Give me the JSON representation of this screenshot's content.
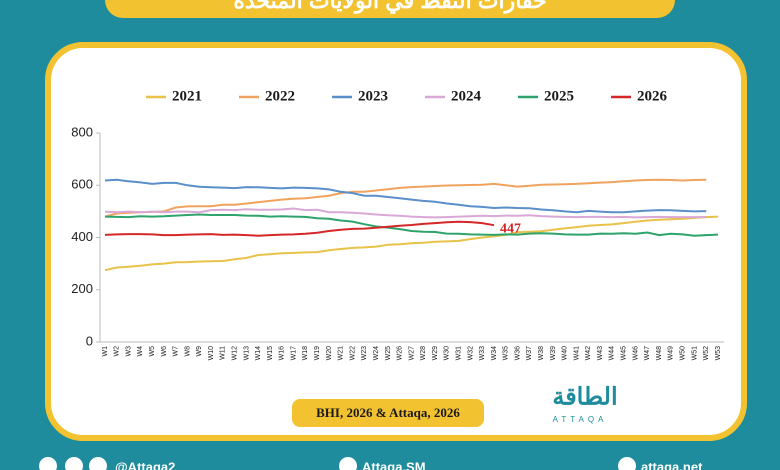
{
  "banner": {
    "title": "حفارات النفط في الولايات المتحدة"
  },
  "source": "BHI, 2026 & Attaqa, 2026",
  "logo": {
    "arabic": "الطاقة",
    "latin": "ATTAQA"
  },
  "social": [
    "@Attaqa2",
    "Attaqa.SM",
    "attaqa.net"
  ],
  "chart_data": {
    "type": "line",
    "categories": [
      "W1",
      "W2",
      "W3",
      "W4",
      "W5",
      "W6",
      "W7",
      "W8",
      "W9",
      "W10",
      "W11",
      "W12",
      "W13",
      "W14",
      "W15",
      "W16",
      "W17",
      "W18",
      "W19",
      "W20",
      "W21",
      "W22",
      "W23",
      "W24",
      "W25",
      "W26",
      "W27",
      "W28",
      "W29",
      "W30",
      "W31",
      "W32",
      "W33",
      "W34",
      "W35",
      "W36",
      "W37",
      "W38",
      "W39",
      "W40",
      "W41",
      "W42",
      "W43",
      "W44",
      "W45",
      "W46",
      "W47",
      "W48",
      "W49",
      "W50",
      "W51",
      "W52",
      "W53"
    ],
    "ylim": [
      0,
      800
    ],
    "yticks": [
      0,
      200,
      400,
      600,
      800
    ],
    "grid": false,
    "legend": "top",
    "series": [
      {
        "name": "2021",
        "color": "#e8c24a",
        "values": [
          275,
          285,
          288,
          292,
          297,
          300,
          305,
          306,
          308,
          309,
          310,
          317,
          322,
          333,
          336,
          340,
          341,
          343,
          344,
          351,
          356,
          360,
          362,
          365,
          372,
          374,
          378,
          380,
          384,
          385,
          387,
          394,
          400,
          405,
          410,
          420,
          422,
          424,
          430,
          435,
          440,
          445,
          448,
          450,
          455,
          460,
          465,
          468,
          470,
          472,
          475,
          478,
          480
        ]
      },
      {
        "name": "2022",
        "color": "#f0a35e",
        "values": [
          480,
          492,
          495,
          497,
          498,
          500,
          515,
          519,
          520,
          520,
          525,
          525,
          530,
          535,
          540,
          545,
          548,
          550,
          555,
          560,
          570,
          575,
          575,
          580,
          585,
          590,
          593,
          595,
          597,
          599,
          600,
          601,
          602,
          605,
          600,
          595,
          598,
          602,
          603,
          604,
          605,
          608,
          610,
          612,
          615,
          618,
          620,
          621,
          620,
          618,
          620,
          621,
          null
        ]
      },
      {
        "name": "2023",
        "color": "#5b8fc9",
        "values": [
          618,
          621,
          615,
          611,
          605,
          609,
          609,
          600,
          594,
          592,
          591,
          589,
          593,
          592,
          590,
          588,
          591,
          590,
          588,
          584,
          575,
          570,
          560,
          560,
          555,
          550,
          545,
          540,
          537,
          530,
          525,
          520,
          517,
          513,
          515,
          513,
          512,
          507,
          504,
          500,
          497,
          502,
          499,
          497,
          497,
          500,
          503,
          505,
          504,
          502,
          500,
          501,
          null
        ]
      },
      {
        "name": "2024",
        "color": "#d9a8d6",
        "values": [
          499,
          497,
          499,
          497,
          499,
          497,
          499,
          499,
          497,
          505,
          506,
          505,
          508,
          506,
          506,
          507,
          511,
          505,
          506,
          497,
          497,
          495,
          492,
          488,
          485,
          483,
          480,
          478,
          477,
          478,
          480,
          481,
          483,
          482,
          484,
          483,
          485,
          482,
          480,
          479,
          478,
          479,
          479,
          478,
          479,
          477,
          478,
          479,
          478,
          478,
          478,
          478,
          null
        ]
      },
      {
        "name": "2025",
        "color": "#2ea36b",
        "values": [
          480,
          479,
          478,
          481,
          480,
          481,
          484,
          486,
          488,
          486,
          486,
          486,
          484,
          483,
          480,
          481,
          480,
          479,
          474,
          472,
          465,
          461,
          451,
          442,
          438,
          432,
          425,
          422,
          421,
          415,
          414,
          412,
          411,
          410,
          412,
          411,
          415,
          416,
          415,
          412,
          411,
          411,
          415,
          414,
          416,
          414,
          419,
          409,
          414,
          412,
          407,
          409,
          411
        ]
      },
      {
        "name": "2026",
        "color": "#d62728",
        "values": [
          410,
          412,
          413,
          413,
          412,
          409,
          409,
          411,
          412,
          413,
          410,
          411,
          409,
          407,
          409,
          411,
          412,
          414,
          418,
          425,
          430,
          433,
          434,
          437,
          441,
          445,
          448,
          452,
          455,
          458,
          460,
          459,
          455,
          447,
          null,
          null,
          null,
          null,
          null,
          null,
          null,
          null,
          null,
          null,
          null,
          null,
          null,
          null,
          null,
          null,
          null,
          null,
          null
        ]
      }
    ]
  }
}
